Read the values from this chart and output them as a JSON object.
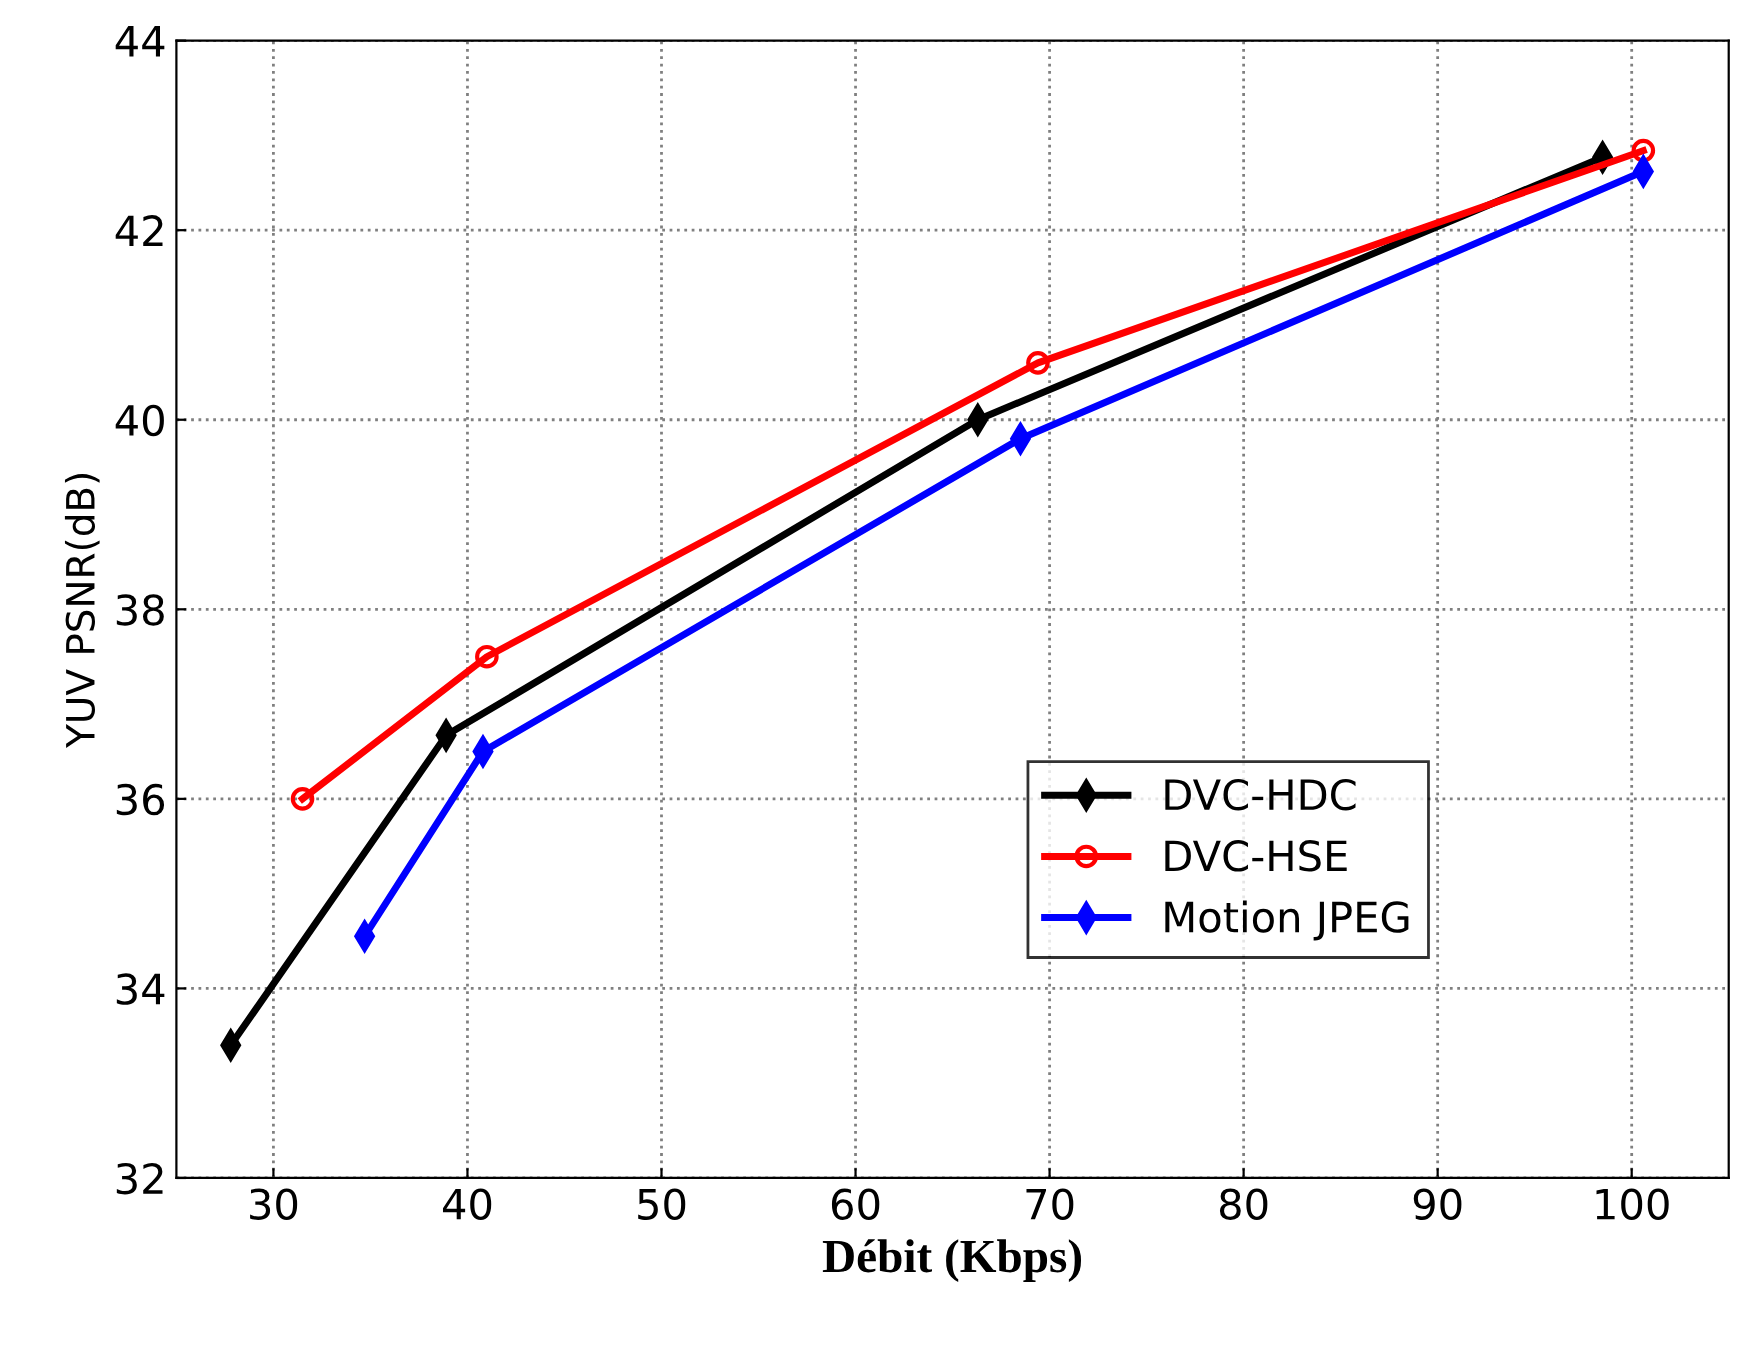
{
  "chart_data": {
    "type": "line",
    "xlabel": "Débit (Kbps)",
    "ylabel": "YUV PSNR(dB)",
    "xlim": [
      25,
      105
    ],
    "xticks": [
      30,
      40,
      50,
      60,
      70,
      80,
      90,
      100
    ],
    "ylim": [
      32,
      44
    ],
    "yticks": [
      32,
      34,
      36,
      38,
      40,
      42,
      44
    ],
    "grid": true,
    "legend": "center right",
    "series": [
      {
        "name": "DVC-HDC",
        "color": "#000000",
        "marker": "diamond",
        "x": [
          27.8,
          38.9,
          66.3,
          98.5
        ],
        "values": [
          33.4,
          36.67,
          40.0,
          42.77
        ]
      },
      {
        "name": "DVC-HSE",
        "color": "#ff0000",
        "marker": "circle",
        "x": [
          31.5,
          41.0,
          69.4,
          100.6
        ],
        "values": [
          36.0,
          37.5,
          40.6,
          42.84
        ]
      },
      {
        "name": "Motion JPEG",
        "color": "#0000ff",
        "marker": "diamond",
        "x": [
          34.7,
          40.8,
          68.5,
          100.6
        ],
        "values": [
          34.55,
          36.5,
          39.8,
          42.62
        ]
      }
    ]
  }
}
